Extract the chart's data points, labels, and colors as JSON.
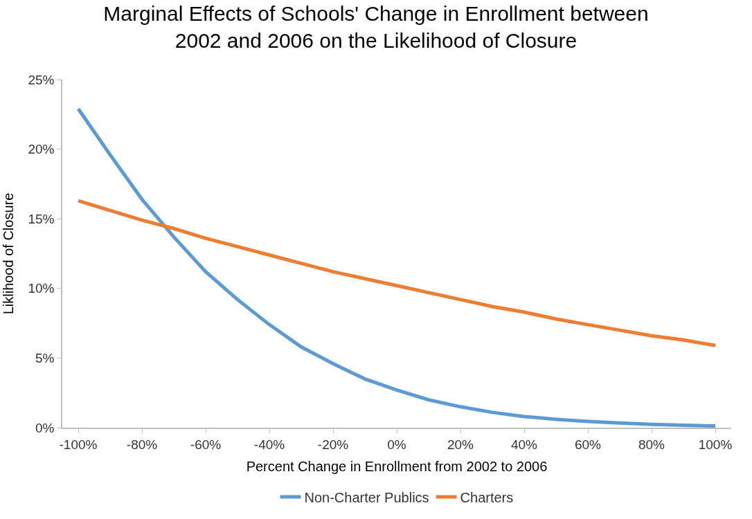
{
  "chart_data": {
    "type": "line",
    "title": "Marginal Effects of Schools' Change in Enrollment between\n2002 and 2006 on the Likelihood of Closure",
    "xlabel": "Percent Change in Enrollment from 2002 to 2006",
    "ylabel": "Liklihood of Closure",
    "x": [
      -100,
      -90,
      -80,
      -70,
      -60,
      -50,
      -40,
      -30,
      -20,
      -10,
      0,
      10,
      20,
      30,
      40,
      50,
      60,
      70,
      80,
      90,
      100
    ],
    "series": [
      {
        "name": "Non-Charter Publics",
        "color": "#5b9bd5",
        "values": [
          22.9,
          19.6,
          16.4,
          13.7,
          11.2,
          9.2,
          7.4,
          5.8,
          4.6,
          3.5,
          2.7,
          2.0,
          1.5,
          1.1,
          0.8,
          0.6,
          0.45,
          0.33,
          0.24,
          0.17,
          0.12
        ]
      },
      {
        "name": "Charters",
        "color": "#ed7d31",
        "values": [
          16.3,
          15.6,
          14.9,
          14.3,
          13.6,
          13.0,
          12.4,
          11.8,
          11.2,
          10.7,
          10.2,
          9.7,
          9.2,
          8.7,
          8.3,
          7.8,
          7.4,
          7.0,
          6.6,
          6.3,
          5.9
        ]
      }
    ],
    "xlim": [
      -105,
      105
    ],
    "xticks": [
      {
        "value": -100,
        "label": "-100%"
      },
      {
        "value": -80,
        "label": "-80%"
      },
      {
        "value": -60,
        "label": "-60%"
      },
      {
        "value": -40,
        "label": "-40%"
      },
      {
        "value": -20,
        "label": "-20%"
      },
      {
        "value": 0,
        "label": "0%"
      },
      {
        "value": 20,
        "label": "20%"
      },
      {
        "value": 40,
        "label": "40%"
      },
      {
        "value": 60,
        "label": "60%"
      },
      {
        "value": 80,
        "label": "80%"
      },
      {
        "value": 100,
        "label": "100%"
      }
    ],
    "ylim": [
      0,
      25
    ],
    "yticks": [
      {
        "value": 0,
        "label": "0%"
      },
      {
        "value": 5,
        "label": "5%"
      },
      {
        "value": 10,
        "label": "10%"
      },
      {
        "value": 15,
        "label": "15%"
      },
      {
        "value": 20,
        "label": "20%"
      },
      {
        "value": 25,
        "label": "25%"
      }
    ],
    "legend": "bottom",
    "marker": "none",
    "line_style": "solid"
  }
}
